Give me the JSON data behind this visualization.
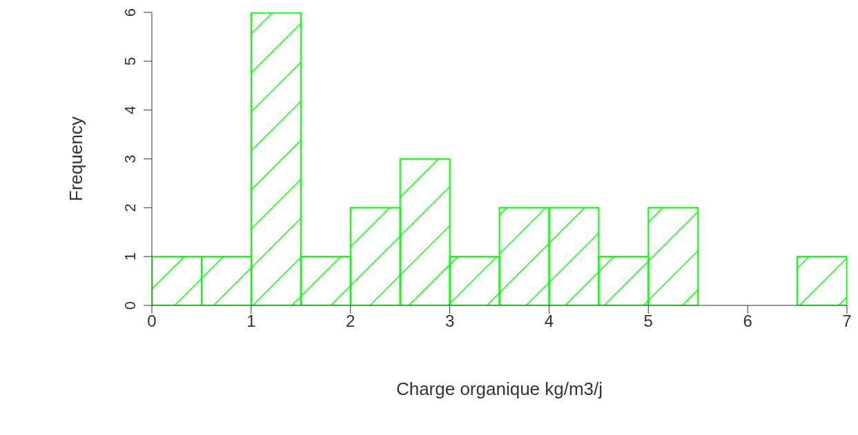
{
  "chart_data": {
    "type": "histogram",
    "xlabel": "Charge organique kg/m3/j",
    "ylabel": "Frequency",
    "bins": [
      0,
      0.5,
      1,
      1.5,
      2,
      2.5,
      3,
      3.5,
      4,
      4.5,
      5,
      5.5,
      6,
      6.5,
      7
    ],
    "values": [
      1,
      1,
      6,
      1,
      2,
      3,
      1,
      2,
      2,
      1,
      2,
      0,
      0,
      1
    ],
    "color": "#00ff00",
    "xlim": [
      0,
      7
    ],
    "xticks": [
      0,
      1,
      2,
      3,
      4,
      5,
      6,
      7
    ],
    "ylim": [
      0,
      6
    ],
    "yticks": [
      0,
      1,
      2,
      3,
      4,
      5,
      6
    ],
    "grid": false
  }
}
